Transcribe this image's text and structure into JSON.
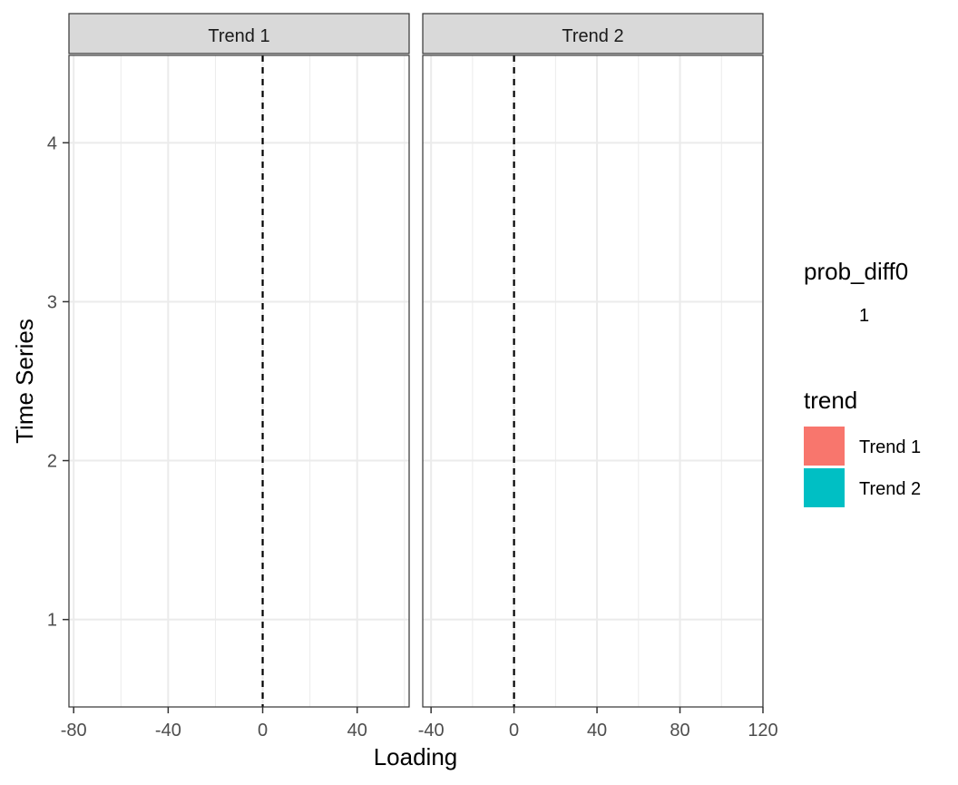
{
  "chart_data": {
    "type": "bar",
    "xlabel": "Loading",
    "ylabel": "Time Series",
    "y_ticks": [
      "1",
      "2",
      "3",
      "4"
    ],
    "ylim": [
      0.45,
      4.55
    ],
    "reference_line": {
      "x": 0,
      "style": "dashed"
    },
    "grid": true,
    "legend_position": "right",
    "panels": [
      {
        "strip": "Trend 1",
        "xlim": [
          -82,
          62
        ],
        "x_ticks": [
          -80,
          -40,
          0,
          40
        ],
        "x_tick_labels": [
          "-80",
          "-40",
          "0",
          "40"
        ],
        "x_minor": [
          -60,
          -20,
          20,
          60
        ],
        "series": []
      },
      {
        "strip": "Trend 2",
        "xlim": [
          -44,
          120
        ],
        "x_ticks": [
          -40,
          0,
          40,
          80,
          120
        ],
        "x_tick_labels": [
          "-40",
          "0",
          "40",
          "80",
          "120"
        ],
        "x_minor": [
          -20,
          20,
          60,
          100
        ],
        "series": []
      }
    ],
    "legends": [
      {
        "title": "prob_diff0",
        "items": [
          {
            "label": "1"
          }
        ]
      },
      {
        "title": "trend",
        "items": [
          {
            "label": "Trend 1",
            "color": "#F8766D"
          },
          {
            "label": "Trend 2",
            "color": "#00BFC4"
          }
        ]
      }
    ]
  }
}
